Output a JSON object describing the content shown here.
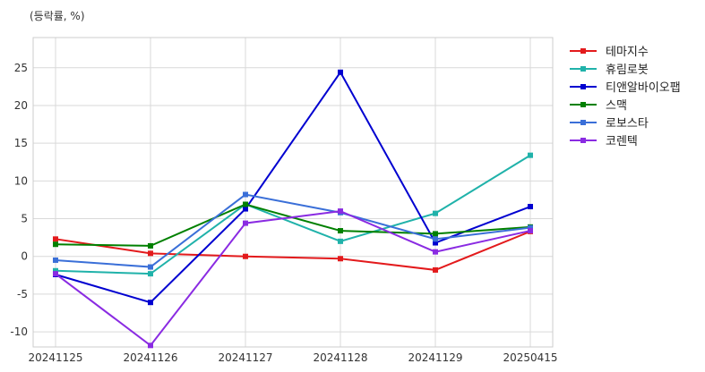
{
  "chart_data": {
    "type": "line",
    "unit_label": "(등락률, %)",
    "title": "",
    "xlabel": "",
    "ylabel": "",
    "categories": [
      "20241125",
      "20241126",
      "20241127",
      "20241128",
      "20241129",
      "20250415"
    ],
    "ylim": [
      -12,
      29
    ],
    "yticks": [
      -10,
      -5,
      0,
      5,
      10,
      15,
      20,
      25
    ],
    "grid": true,
    "legend_position": "top-right-outside",
    "series": [
      {
        "name": "테마지수",
        "color": "#e31a1c",
        "values": [
          2.3,
          0.4,
          0.0,
          -0.3,
          -1.8,
          3.3
        ]
      },
      {
        "name": "휴림로봇",
        "color": "#20b2aa",
        "values": [
          -1.9,
          -2.3,
          6.9,
          2.0,
          5.7,
          13.4
        ]
      },
      {
        "name": "티앤알바이오팹",
        "color": "#0000d0",
        "values": [
          -2.4,
          -6.1,
          6.3,
          24.4,
          1.8,
          6.6
        ]
      },
      {
        "name": "스맥",
        "color": "#008000",
        "values": [
          1.6,
          1.4,
          6.9,
          3.4,
          3.0,
          3.9
        ]
      },
      {
        "name": "로보스타",
        "color": "#3a6fd8",
        "values": [
          -0.5,
          -1.4,
          8.2,
          5.8,
          2.3,
          3.8
        ]
      },
      {
        "name": "코렌텍",
        "color": "#8a2be2",
        "values": [
          -2.3,
          -11.8,
          4.4,
          6.0,
          0.6,
          3.4
        ]
      }
    ]
  }
}
